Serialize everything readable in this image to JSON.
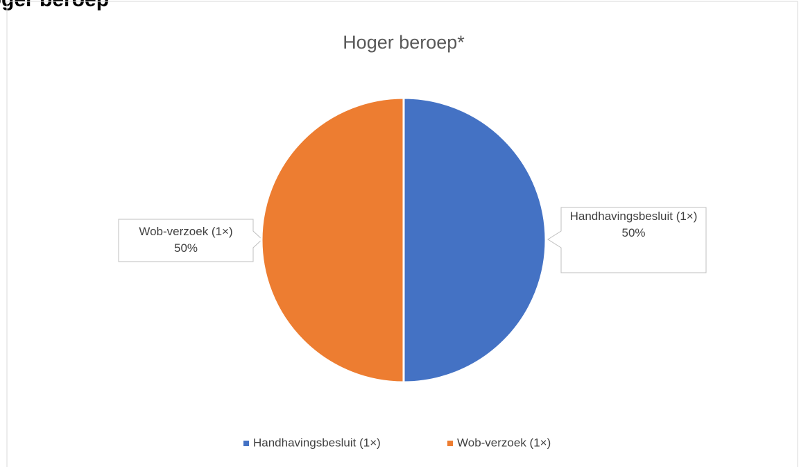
{
  "page_heading": "Hoger beroep",
  "chart_data": {
    "type": "pie",
    "title": "Hoger beroep*",
    "categories": [
      "Handhavingsbesluit (1×)",
      "Wob-verzoek (1×)"
    ],
    "values": [
      50,
      50
    ],
    "value_labels": [
      "50%",
      "50%"
    ],
    "colors": [
      "#4472c4",
      "#ed7d31"
    ],
    "legend": "bottom"
  }
}
